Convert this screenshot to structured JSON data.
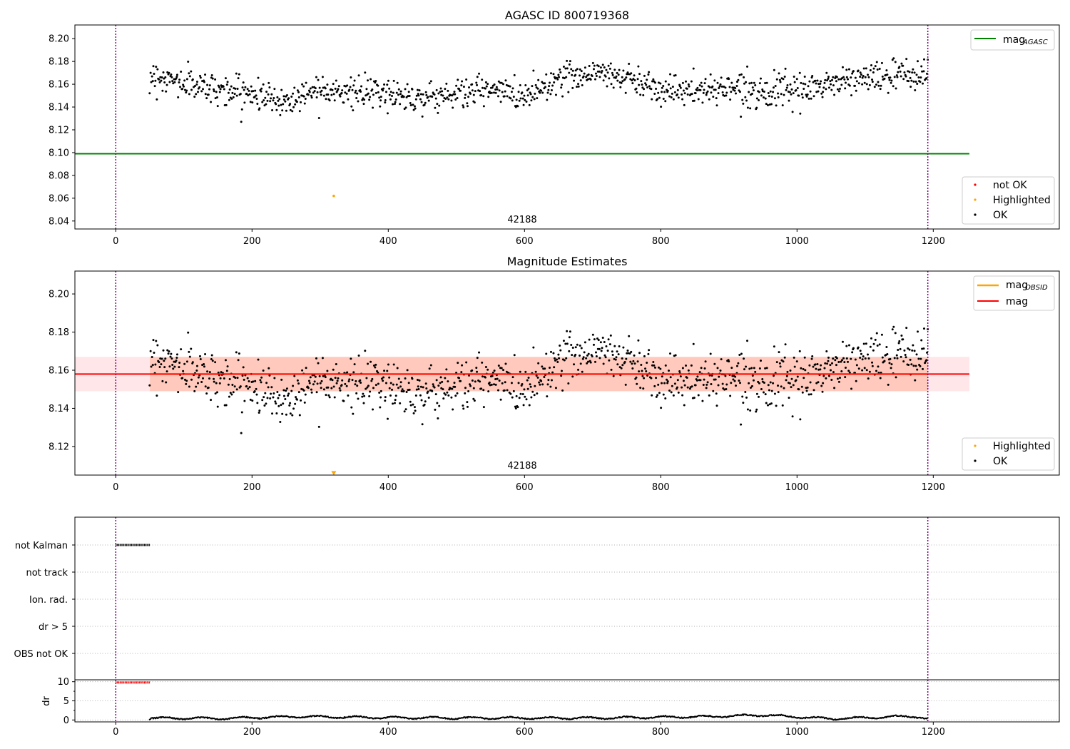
{
  "colors": {
    "ok": "#000000",
    "not_ok": "#ff0000",
    "highlighted": "#ffa500",
    "mag_agasc": "#008000",
    "mag": "#ff0000",
    "mag_obsid": "#ffa500",
    "band": "#ffb6c1",
    "band_obsid": "#ffa07a",
    "boundary": "#800080"
  },
  "chart_data": [
    {
      "type": "scatter",
      "title": "AGASC ID 800719368",
      "xlim": [
        -60,
        1385
      ],
      "ylim": [
        8.033,
        8.212
      ],
      "xticks": [
        0,
        200,
        400,
        600,
        800,
        1000,
        1200
      ],
      "yticks": [
        8.04,
        8.06,
        8.08,
        8.1,
        8.12,
        8.14,
        8.16,
        8.18,
        8.2
      ],
      "ytick_labels": [
        "8.04",
        "8.06",
        "8.08",
        "8.10",
        "8.12",
        "8.14",
        "8.16",
        "8.18",
        "8.20"
      ],
      "xtick_labels": [
        "0",
        "200",
        "400",
        "600",
        "800",
        "1000",
        "1200"
      ],
      "vlines": [
        0,
        1192
      ],
      "hline": {
        "name": "mag_AGASC",
        "y": 8.099,
        "x": [
          -60,
          1253
        ]
      },
      "obsid_label": {
        "text": "42188",
        "x": 596,
        "y": 8.038
      },
      "highlighted_point": {
        "x": 320,
        "y": 8.062
      },
      "series_summary": {
        "name": "OK",
        "x_range": [
          50,
          1192
        ],
        "n_points": 1100,
        "mean_by_segment": [
          {
            "x": 50,
            "y": 8.168
          },
          {
            "x": 100,
            "y": 8.161
          },
          {
            "x": 150,
            "y": 8.156
          },
          {
            "x": 200,
            "y": 8.152
          },
          {
            "x": 250,
            "y": 8.144
          },
          {
            "x": 300,
            "y": 8.158
          },
          {
            "x": 350,
            "y": 8.152
          },
          {
            "x": 400,
            "y": 8.152
          },
          {
            "x": 450,
            "y": 8.148
          },
          {
            "x": 500,
            "y": 8.152
          },
          {
            "x": 550,
            "y": 8.155
          },
          {
            "x": 600,
            "y": 8.15
          },
          {
            "x": 650,
            "y": 8.165
          },
          {
            "x": 700,
            "y": 8.171
          },
          {
            "x": 750,
            "y": 8.166
          },
          {
            "x": 800,
            "y": 8.156
          },
          {
            "x": 850,
            "y": 8.153
          },
          {
            "x": 900,
            "y": 8.158
          },
          {
            "x": 950,
            "y": 8.154
          },
          {
            "x": 1000,
            "y": 8.153
          },
          {
            "x": 1050,
            "y": 8.161
          },
          {
            "x": 1100,
            "y": 8.166
          },
          {
            "x": 1150,
            "y": 8.167
          },
          {
            "x": 1192,
            "y": 8.17
          }
        ]
      },
      "legend_upper": [
        {
          "label": "mag",
          "sub": "AGASC",
          "kind": "line",
          "color_key": "mag_agasc"
        }
      ],
      "legend_lower": [
        {
          "label": "not OK",
          "color_key": "not_ok"
        },
        {
          "label": "Highlighted",
          "color_key": "highlighted"
        },
        {
          "label": "OK",
          "color_key": "ok"
        }
      ]
    },
    {
      "type": "scatter",
      "title": "Magnitude Estimates",
      "xlim": [
        -60,
        1385
      ],
      "ylim": [
        8.105,
        8.212
      ],
      "xticks": [
        0,
        200,
        400,
        600,
        800,
        1000,
        1200
      ],
      "xtick_labels": [
        "0",
        "200",
        "400",
        "600",
        "800",
        "1000",
        "1200"
      ],
      "yticks": [
        8.12,
        8.14,
        8.16,
        8.18,
        8.2
      ],
      "ytick_labels": [
        "8.12",
        "8.14",
        "8.16",
        "8.18",
        "8.20"
      ],
      "vlines": [
        0,
        1192
      ],
      "mag_line": {
        "y": 8.158,
        "x": [
          -60,
          1253
        ],
        "band": [
          8.149,
          8.167
        ]
      },
      "mag_obsid_band": {
        "y": 8.158,
        "x": [
          50,
          1192
        ],
        "band": [
          8.149,
          8.167
        ]
      },
      "obsid_label": {
        "text": "42188",
        "x": 596,
        "y": 8.108
      },
      "highlighted_point": {
        "x": 320,
        "y": 8.106
      },
      "legend_upper": [
        {
          "label": "mag",
          "sub": "OBSID",
          "kind": "line",
          "color_key": "mag_obsid"
        },
        {
          "label": "mag",
          "sub": "",
          "kind": "line",
          "color_key": "mag"
        }
      ],
      "legend_lower": [
        {
          "label": "Highlighted",
          "color_key": "highlighted"
        },
        {
          "label": "OK",
          "color_key": "ok"
        }
      ]
    },
    {
      "type": "scatter",
      "title": "",
      "xlim": [
        -60,
        1385
      ],
      "categories": [
        "not Kalman",
        "not track",
        "Ion. rad.",
        "dr > 5",
        "OBS not OK"
      ],
      "flag_segments": [
        {
          "category": "not Kalman",
          "x": [
            0,
            50
          ]
        }
      ],
      "vlines": [
        0,
        1192
      ],
      "xticks": [
        0,
        200,
        400,
        600,
        800,
        1000,
        1200
      ],
      "xtick_labels": [
        "0",
        "200",
        "400",
        "600",
        "800",
        "1000",
        "1200"
      ]
    },
    {
      "type": "scatter",
      "title": "",
      "ylabel": "dr",
      "xlim": [
        -60,
        1385
      ],
      "ylim": [
        -0.5,
        10.5
      ],
      "yticks": [
        0,
        5,
        10
      ],
      "ytick_labels": [
        "0",
        "5",
        "10"
      ],
      "xticks": [
        0,
        200,
        400,
        600,
        800,
        1000,
        1200
      ],
      "xtick_labels": [
        "0",
        "200",
        "400",
        "600",
        "800",
        "1000",
        "1200"
      ],
      "vlines": [
        0,
        1192
      ],
      "clipped_segment": {
        "x": [
          0,
          50
        ],
        "y": 9.8
      },
      "dr_segments": [
        {
          "x": 50,
          "y": 0.5
        },
        {
          "x": 150,
          "y": 0.4
        },
        {
          "x": 270,
          "y": 0.9
        },
        {
          "x": 400,
          "y": 0.6
        },
        {
          "x": 550,
          "y": 0.5
        },
        {
          "x": 700,
          "y": 0.5
        },
        {
          "x": 880,
          "y": 0.9
        },
        {
          "x": 950,
          "y": 1.3
        },
        {
          "x": 1050,
          "y": 0.3
        },
        {
          "x": 1170,
          "y": 1.0
        },
        {
          "x": 1192,
          "y": 0.3
        }
      ]
    }
  ]
}
